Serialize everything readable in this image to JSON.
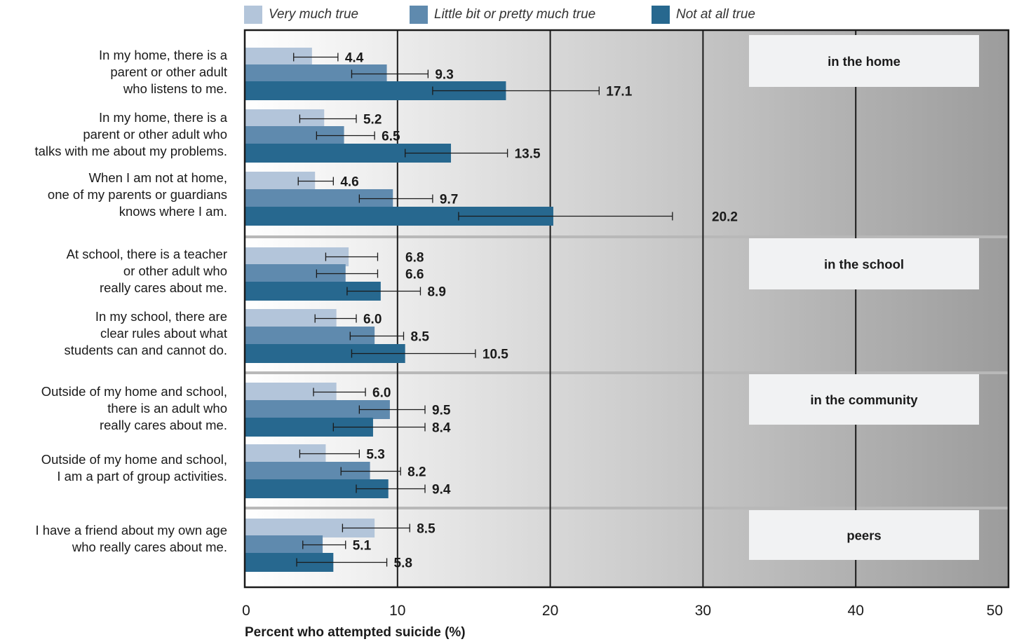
{
  "chart_data": {
    "type": "bar",
    "orientation": "horizontal",
    "xlabel": "Percent who attempted suicide (%)",
    "xlim": [
      0,
      50
    ],
    "xticks": [
      0,
      10,
      20,
      30,
      40,
      50
    ],
    "grid": true,
    "legend_position": "top",
    "series": [
      {
        "name": "Very much true",
        "color": "#b3c5da"
      },
      {
        "name": "Little bit or pretty much true",
        "color": "#5f8aae"
      },
      {
        "name": "Not at all true",
        "color": "#27688f"
      }
    ],
    "categories": [
      {
        "label": "In my home, there is a\nparent or other adult\nwho listens to me.",
        "group": 0,
        "values": [
          4.4,
          9.3,
          17.1
        ],
        "ci": [
          [
            3.2,
            6.1
          ],
          [
            7.0,
            12.0
          ],
          [
            12.3,
            23.2
          ]
        ]
      },
      {
        "label": "In my home, there is a\nparent or other adult who\ntalks with me about my problems.",
        "group": 0,
        "values": [
          5.2,
          6.5,
          13.5
        ],
        "ci": [
          [
            3.6,
            7.3
          ],
          [
            4.7,
            8.5
          ],
          [
            10.5,
            17.2
          ]
        ]
      },
      {
        "label": "When I am not at home,\none of my parents or guardians\nknows where I am.",
        "group": 0,
        "values": [
          4.6,
          9.7,
          20.2
        ],
        "ci": [
          [
            3.5,
            5.8
          ],
          [
            7.5,
            12.3
          ],
          [
            14.0,
            28.0
          ]
        ]
      },
      {
        "label": "At school, there is a teacher\nor other adult who\nreally cares about me.",
        "group": 1,
        "values": [
          6.8,
          6.6,
          8.9
        ],
        "ci": [
          [
            5.3,
            8.7
          ],
          [
            4.7,
            8.7
          ],
          [
            6.7,
            11.5
          ]
        ]
      },
      {
        "label": "In my school, there are\nclear rules about what\nstudents can and cannot do.",
        "group": 1,
        "values": [
          6.0,
          8.5,
          10.5
        ],
        "ci": [
          [
            4.6,
            7.3
          ],
          [
            6.9,
            10.4
          ],
          [
            7.0,
            15.1
          ]
        ]
      },
      {
        "label": "Outside of my home and school,\nthere is an adult who\nreally cares about me.",
        "group": 2,
        "values": [
          6.0,
          9.5,
          8.4
        ],
        "ci": [
          [
            4.5,
            7.9
          ],
          [
            7.5,
            11.8
          ],
          [
            5.8,
            11.8
          ]
        ]
      },
      {
        "label": "Outside of my home and school,\nI am a part of group activities.",
        "group": 2,
        "values": [
          5.3,
          8.2,
          9.4
        ],
        "ci": [
          [
            3.6,
            7.5
          ],
          [
            6.3,
            10.2
          ],
          [
            7.3,
            11.8
          ]
        ]
      },
      {
        "label": "I have a friend about my own age\nwho really cares about me.",
        "group": 3,
        "values": [
          8.5,
          5.1,
          5.8
        ],
        "ci": [
          [
            6.4,
            10.8
          ],
          [
            3.8,
            6.6
          ],
          [
            3.4,
            9.3
          ]
        ]
      }
    ],
    "groups": [
      "in the home",
      "in the school",
      "in the community",
      "peers"
    ]
  }
}
